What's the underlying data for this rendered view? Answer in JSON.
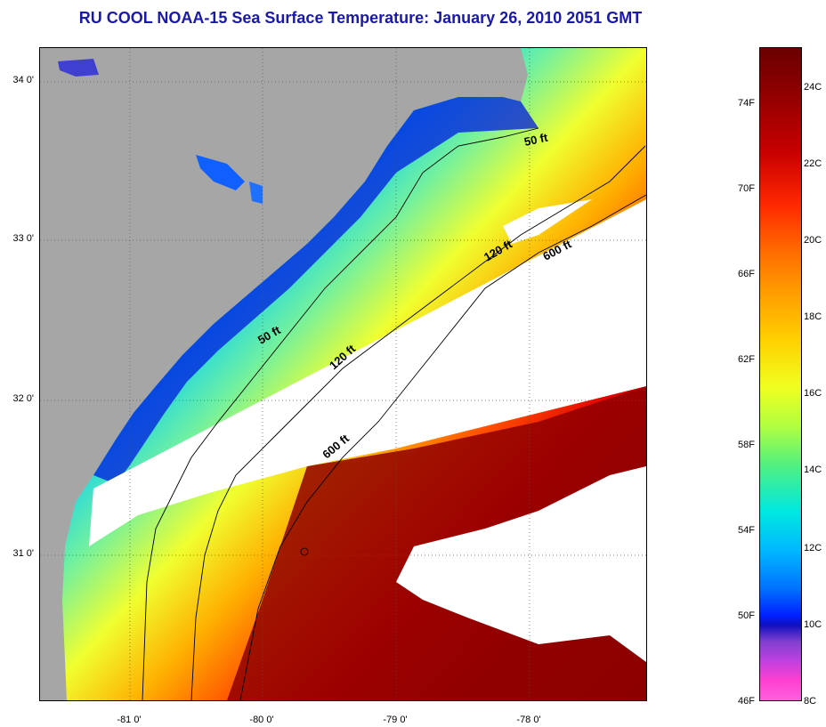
{
  "title": "RU COOL  NOAA-15  Sea Surface Temperature:  January 26, 2010 2051 GMT",
  "lat_labels": [
    "34 0'",
    "33 0'",
    "32 0'",
    "31 0'"
  ],
  "lon_labels": [
    "-81 0'",
    "-80 0'",
    "-79 0'",
    "-78 0'"
  ],
  "isobath_labels": [
    "50 ft",
    "50 ft",
    "120 ft",
    "120 ft",
    "600 ft",
    "600 ft"
  ],
  "colorbar": {
    "fahrenheit": [
      "74F",
      "70F",
      "66F",
      "62F",
      "58F",
      "54F",
      "50F",
      "46F"
    ],
    "celsius": [
      "24C",
      "22C",
      "20C",
      "18C",
      "16C",
      "14C",
      "12C",
      "10C",
      "8C"
    ]
  },
  "colors": {
    "land": "#a6a6a6",
    "title": "#1a1aa6",
    "cloud": "#ffffff"
  }
}
